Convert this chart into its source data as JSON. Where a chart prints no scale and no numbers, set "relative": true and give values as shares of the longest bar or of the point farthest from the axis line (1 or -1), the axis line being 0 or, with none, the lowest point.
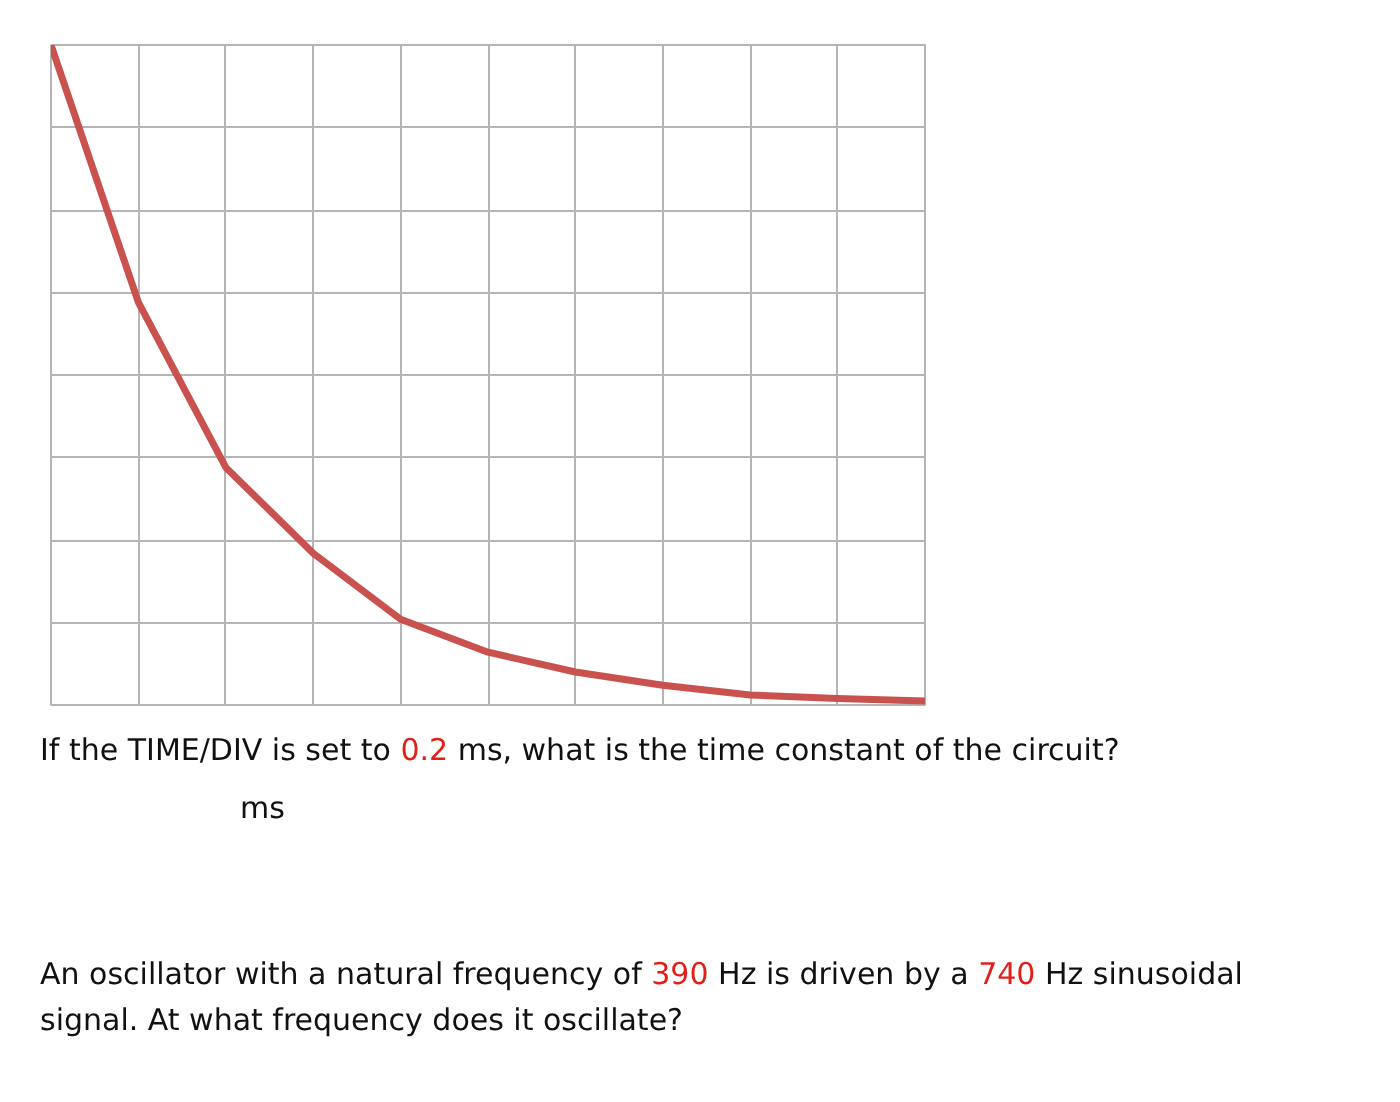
{
  "chart_data": {
    "type": "line",
    "relative": true,
    "grid": true,
    "tick_labels": false,
    "categories": [
      null,
      null,
      null,
      null,
      null,
      null,
      null,
      null,
      null,
      null,
      null
    ],
    "series": [
      {
        "color": "#c9524f",
        "values": [
          1.0,
          0.61,
          0.36,
          0.23,
          0.13,
          0.08,
          0.05,
          0.03,
          0.015,
          0.01,
          0.006
        ]
      }
    ],
    "annotations": [
      "If the TIME/DIV is set to 0.2 ms, what is the time constant of the circuit?",
      "ms",
      "An oscillator with a natural frequency of 390 Hz is driven by a 740 Hz sinusoidal signal. At what frequency does it oscillate?"
    ]
  }
}
